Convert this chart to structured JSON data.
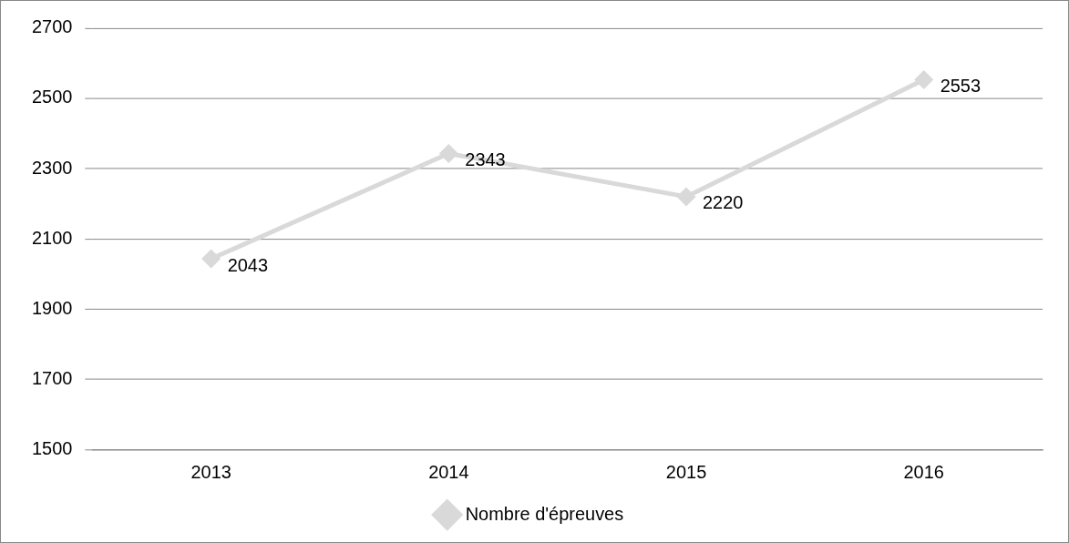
{
  "chart_data": {
    "type": "line",
    "categories": [
      "2013",
      "2014",
      "2015",
      "2016"
    ],
    "series": [
      {
        "name": "Nombre d'épreuves",
        "color": "#d9d9d9",
        "values": [
          2043,
          2343,
          2220,
          2553
        ]
      }
    ],
    "ylim": [
      1500,
      2700
    ],
    "yticks": [
      1500,
      1700,
      1900,
      2100,
      2300,
      2500,
      2700
    ],
    "grid": "y",
    "legend": "bottom",
    "marker": "diamond",
    "line_style": "solid",
    "data_labels": true
  }
}
